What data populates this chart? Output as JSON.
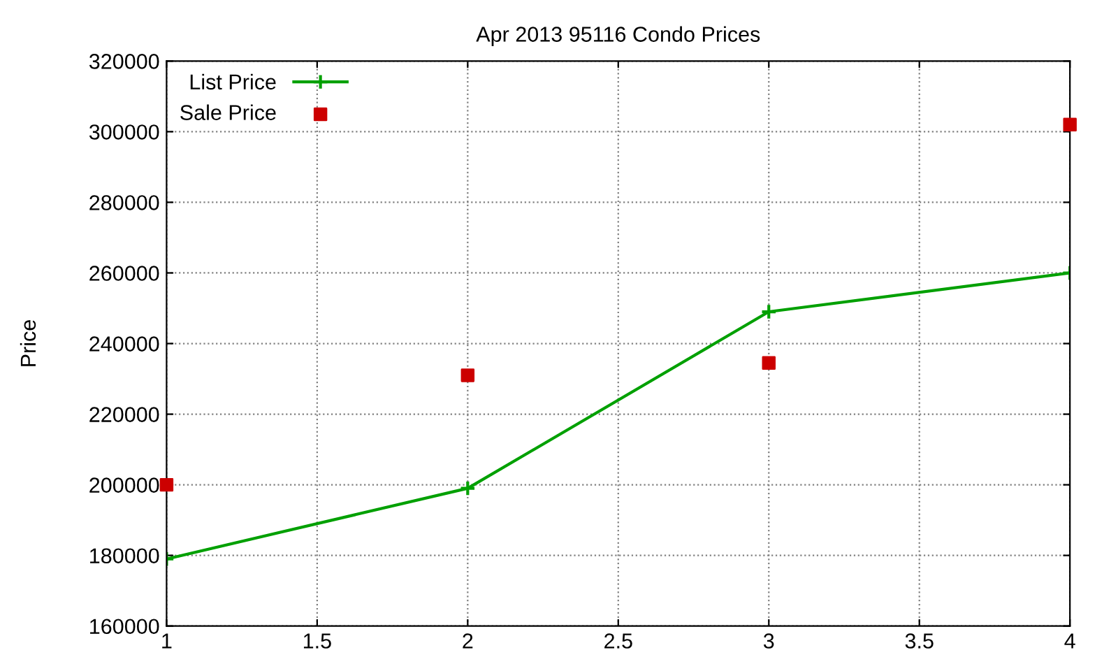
{
  "chart_data": {
    "type": "line",
    "title": "Apr 2013 95116 Condo Prices",
    "ylabel": "Price",
    "x": [
      1,
      2,
      3,
      4
    ],
    "series": [
      {
        "name": "List Price",
        "color": "#00a000",
        "marker": "cross",
        "values": [
          179000,
          199000,
          249000,
          260000
        ]
      },
      {
        "name": "Sale Price",
        "type": "scatter",
        "color": "#cc0000",
        "marker": "square",
        "values": [
          200000,
          231000,
          234500,
          302000
        ]
      }
    ],
    "xlim": [
      1,
      4
    ],
    "xticks": [
      1,
      1.5,
      2,
      2.5,
      3,
      3.5,
      4
    ],
    "ylim": [
      160000,
      320000
    ],
    "yticks": [
      160000,
      180000,
      200000,
      220000,
      240000,
      260000,
      280000,
      300000,
      320000
    ],
    "grid": true,
    "legend": "top left",
    "line_style": "solid"
  }
}
